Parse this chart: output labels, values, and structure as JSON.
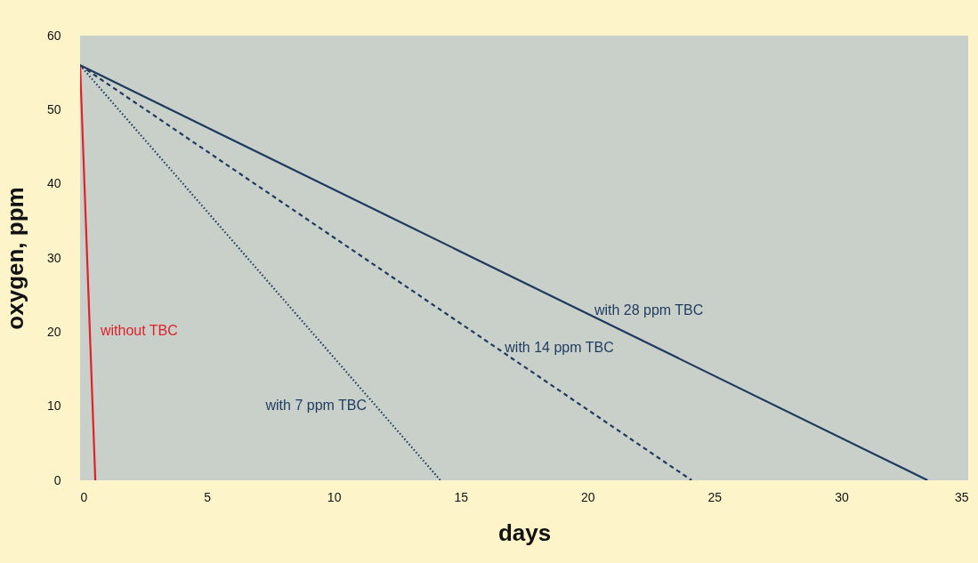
{
  "chart_data": {
    "type": "line",
    "xlabel": "days",
    "ylabel": "oxygen, ppm",
    "xlim": [
      0,
      35
    ],
    "ylim": [
      0,
      60
    ],
    "xticks": [
      0,
      5,
      10,
      15,
      20,
      25,
      30,
      35
    ],
    "yticks": [
      0,
      10,
      20,
      30,
      40,
      50,
      60
    ],
    "grid": false,
    "marker": "none",
    "series": [
      {
        "name": "without TBC",
        "color": "#e0202a",
        "line_style": "solid",
        "x": [
          0,
          0.6
        ],
        "values": [
          56,
          0
        ]
      },
      {
        "name": "with 7 ppm TBC",
        "color": "#1f3a5f",
        "line_style": "dotted",
        "x": [
          0,
          14.2
        ],
        "values": [
          56,
          0
        ]
      },
      {
        "name": "with 14 ppm TBC",
        "color": "#1f3a5f",
        "line_style": "dashed",
        "x": [
          0,
          24.1
        ],
        "values": [
          56,
          0
        ]
      },
      {
        "name": "with 28 ppm TBC",
        "color": "#1f3a5f",
        "line_style": "solid",
        "x": [
          0,
          33.4
        ],
        "values": [
          56,
          0
        ]
      }
    ]
  }
}
